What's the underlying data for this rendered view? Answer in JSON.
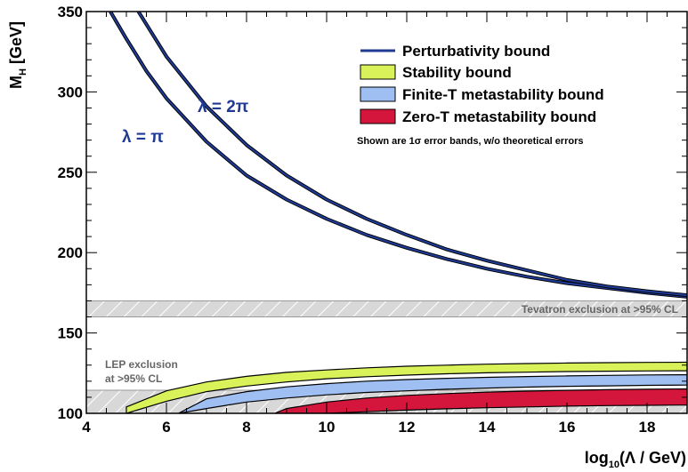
{
  "chart_data": {
    "type": "area",
    "title": "",
    "xlabel": {
      "prefix": "log",
      "sub": "10",
      "rest": "(Λ / GeV)"
    },
    "ylabel": {
      "main": "M",
      "sub": "H",
      "rest": " [GeV]"
    },
    "xlim": [
      4,
      19
    ],
    "ylim": [
      100,
      350
    ],
    "x_ticks": [
      "4",
      "6",
      "8",
      "10",
      "12",
      "14",
      "16",
      "18"
    ],
    "y_ticks": [
      "100",
      "150",
      "200",
      "250",
      "300",
      "350"
    ],
    "legend": {
      "position": "top-right",
      "entries": [
        {
          "label": "Perturbativity bound",
          "kind": "line",
          "color": "#1f3a93"
        },
        {
          "label": "Stability bound",
          "kind": "box",
          "color": "#d9f25a"
        },
        {
          "label": "Finite-T metastability bound",
          "kind": "box",
          "color": "#9fbff2"
        },
        {
          "label": "Zero-T metastability bound",
          "kind": "box",
          "color": "#d4163c"
        }
      ],
      "note": "Shown are 1σ error bands, w/o theoretical errors"
    },
    "series": [
      {
        "name": "λ = π",
        "kind": "line",
        "color": "#1f3a93",
        "x": [
          4.6,
          5,
          5.5,
          6,
          7,
          8,
          9,
          10,
          11,
          12,
          13,
          14,
          15,
          16,
          17,
          18,
          19
        ],
        "y": [
          350,
          333,
          313,
          296,
          269,
          248,
          233,
          221,
          211,
          203,
          196,
          190,
          185,
          181,
          178,
          175,
          172.5
        ]
      },
      {
        "name": "λ = 2π",
        "kind": "line",
        "color": "#1f3a93",
        "x": [
          5.3,
          6,
          7,
          8,
          9,
          10,
          11,
          12,
          13,
          14,
          15,
          16,
          17,
          18,
          19
        ],
        "y": [
          350,
          322,
          291,
          267,
          248,
          233,
          221,
          211,
          202,
          195,
          189,
          183,
          179,
          176,
          173.5
        ]
      },
      {
        "name": "Stability bound",
        "kind": "band",
        "color": "#d9f25a",
        "x": [
          5,
          6,
          7,
          8,
          9,
          10,
          11,
          12,
          13,
          14,
          15,
          16,
          17,
          18,
          19
        ],
        "lower": [
          100,
          107.5,
          113.5,
          117,
          119.5,
          121.5,
          122.8,
          123.8,
          124.6,
          125.2,
          125.6,
          126,
          126.2,
          126.4,
          126.5
        ],
        "upper": [
          104,
          114,
          119.5,
          123,
          125.5,
          127,
          128.3,
          129.3,
          130,
          130.6,
          131,
          131.3,
          131.5,
          131.7,
          131.8
        ]
      },
      {
        "name": "Finite-T metastability bound",
        "kind": "band",
        "color": "#9fbff2",
        "x": [
          6.3,
          7,
          8,
          9,
          10,
          11,
          12,
          13,
          14,
          15,
          16,
          17,
          18,
          19
        ],
        "lower": [
          100,
          103,
          107,
          109.5,
          111.5,
          113,
          114,
          115,
          115.7,
          116.3,
          116.8,
          117.1,
          117.4,
          117.6
        ],
        "upper": [
          100,
          109,
          113.5,
          116.5,
          118.5,
          120,
          121,
          121.8,
          122.4,
          122.9,
          123.3,
          123.6,
          123.9,
          124
        ]
      },
      {
        "name": "Zero-T metastability bound",
        "kind": "band",
        "color": "#d4163c",
        "x": [
          8.7,
          9,
          10,
          11,
          12,
          13,
          14,
          15,
          16,
          17,
          18,
          19
        ],
        "lower": [
          100,
          100,
          100,
          101,
          102,
          102.8,
          103.5,
          104,
          104.5,
          104.8,
          105,
          105.2
        ],
        "upper": [
          100,
          103,
          107,
          109.5,
          111.2,
          112.3,
          113.2,
          113.8,
          114.3,
          114.7,
          115,
          115.2
        ]
      }
    ],
    "exclusions": [
      {
        "label": "Tevatron exclusion at >95% CL",
        "y_range": [
          160,
          170
        ],
        "x_range": [
          4,
          19
        ]
      },
      {
        "label_lines": [
          "LEP exclusion",
          "at >95% CL"
        ],
        "y_range": [
          100,
          114.4
        ],
        "x_range": [
          4,
          19
        ]
      }
    ],
    "curve_labels": [
      {
        "text": "λ = π",
        "x": 6.0,
        "y": 280
      },
      {
        "text": "λ = 2π",
        "x": 8.2,
        "y": 293
      }
    ]
  }
}
